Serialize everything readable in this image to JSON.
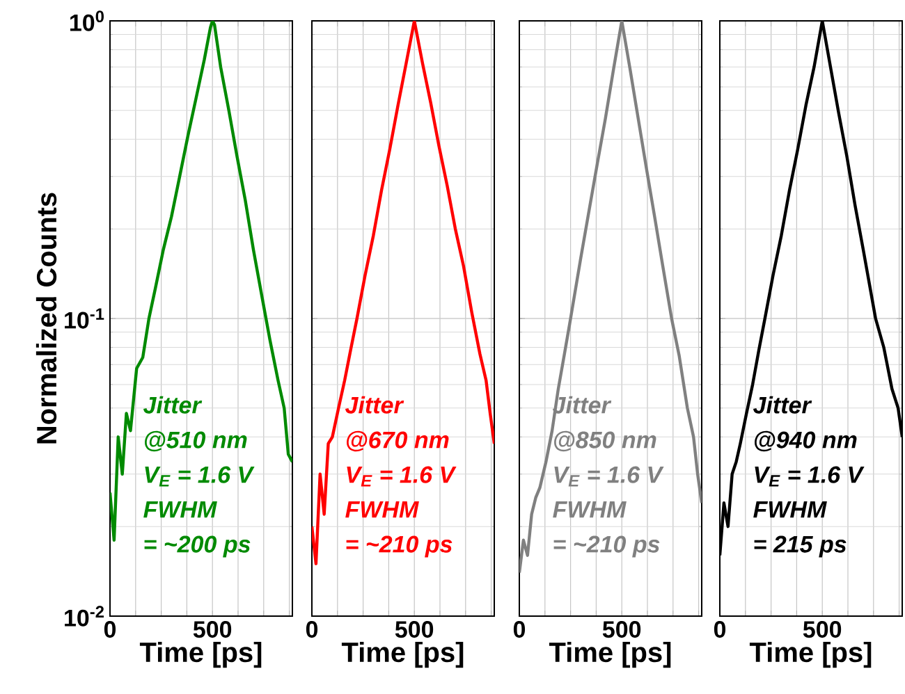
{
  "chart_data": [
    {
      "type": "line",
      "xlabel": "Time [ps]",
      "ylabel": "Normalized Counts",
      "log": "y",
      "grid": true,
      "xlim": [
        0,
        890
      ],
      "ylim": [
        0.01,
        1
      ],
      "xticks": [
        0,
        {
          "value": 125,
          "label": null
        },
        {
          "value": 250,
          "label": null
        },
        {
          "value": 375,
          "label": null
        },
        500,
        {
          "value": 625,
          "label": null
        },
        {
          "value": 750,
          "label": null
        },
        {
          "value": 875,
          "label": null
        }
      ],
      "yticks": [
        {
          "value": 0.01,
          "label": "10$^{-2}$"
        },
        {
          "value": 0.1,
          "label": "10$^{-1}$"
        },
        {
          "value": 1,
          "label": "10$^{0}$"
        }
      ],
      "series": [
        {
          "color": "#008a00",
          "x": [
            0,
            20,
            40,
            60,
            80,
            100,
            130,
            160,
            190,
            220,
            260,
            300,
            340,
            380,
            420,
            460,
            490,
            500,
            510,
            540,
            580,
            620,
            660,
            700,
            740,
            780,
            820,
            850,
            870,
            890
          ],
          "values": [
            0.026,
            0.018,
            0.04,
            0.03,
            0.048,
            0.042,
            0.068,
            0.074,
            0.1,
            0.125,
            0.17,
            0.22,
            0.3,
            0.41,
            0.55,
            0.74,
            0.95,
            1,
            0.97,
            0.7,
            0.5,
            0.35,
            0.25,
            0.17,
            0.12,
            0.085,
            0.062,
            0.05,
            0.035,
            0.033
          ]
        }
      ],
      "annotations": [
        "Jitter",
        "@510 nm",
        "V$_{E}$ = 1.6 V",
        "FWHM",
        "= ~200 ps"
      ]
    },
    {
      "type": "line",
      "xlabel": "Time [ps]",
      "log": "y",
      "grid": true,
      "tick_labels": "x",
      "xlim": [
        0,
        890
      ],
      "ylim": [
        0.01,
        1
      ],
      "xticks": [
        0,
        {
          "value": 125,
          "label": null
        },
        {
          "value": 250,
          "label": null
        },
        {
          "value": 375,
          "label": null
        },
        500,
        {
          "value": 625,
          "label": null
        },
        {
          "value": 750,
          "label": null
        },
        {
          "value": 875,
          "label": null
        }
      ],
      "yticks": [
        {
          "value": 0.01,
          "label": null
        },
        {
          "value": 0.1,
          "label": null
        },
        {
          "value": 1,
          "label": null
        }
      ],
      "series": [
        {
          "color": "#ff0000",
          "x": [
            0,
            20,
            40,
            60,
            80,
            100,
            130,
            160,
            190,
            220,
            260,
            300,
            340,
            380,
            420,
            460,
            500,
            540,
            580,
            620,
            660,
            700,
            740,
            780,
            820,
            850,
            870,
            890
          ],
          "values": [
            0.02,
            0.015,
            0.03,
            0.022,
            0.038,
            0.04,
            0.05,
            0.062,
            0.079,
            0.1,
            0.14,
            0.19,
            0.27,
            0.37,
            0.52,
            0.72,
            1,
            0.72,
            0.53,
            0.38,
            0.28,
            0.2,
            0.15,
            0.105,
            0.076,
            0.062,
            0.048,
            0.038
          ]
        }
      ],
      "annotations": [
        "Jitter",
        "@670 nm",
        "V$_{E}$ = 1.6 V",
        "FWHM",
        "= ~210 ps"
      ]
    },
    {
      "type": "line",
      "xlabel": "Time [ps]",
      "log": "y",
      "grid": true,
      "tick_labels": "x",
      "xlim": [
        0,
        890
      ],
      "ylim": [
        0.01,
        1
      ],
      "xticks": [
        0,
        {
          "value": 125,
          "label": null
        },
        {
          "value": 250,
          "label": null
        },
        {
          "value": 375,
          "label": null
        },
        500,
        {
          "value": 625,
          "label": null
        },
        {
          "value": 750,
          "label": null
        },
        {
          "value": 875,
          "label": null
        }
      ],
      "yticks": [
        {
          "value": 0.01,
          "label": null
        },
        {
          "value": 0.1,
          "label": null
        },
        {
          "value": 1,
          "label": null
        }
      ],
      "series": [
        {
          "color": "#808080",
          "x": [
            0,
            20,
            40,
            60,
            80,
            100,
            130,
            160,
            190,
            220,
            250,
            300,
            340,
            380,
            420,
            460,
            500,
            540,
            580,
            620,
            660,
            700,
            743,
            780,
            820,
            850,
            870,
            890
          ],
          "values": [
            0.014,
            0.018,
            0.016,
            0.022,
            0.025,
            0.027,
            0.033,
            0.042,
            0.058,
            0.076,
            0.1,
            0.16,
            0.23,
            0.33,
            0.47,
            0.69,
            1,
            0.69,
            0.47,
            0.32,
            0.22,
            0.15,
            0.1,
            0.075,
            0.05,
            0.04,
            0.03,
            0.024
          ]
        }
      ],
      "annotations": [
        "Jitter",
        "@850 nm",
        "V$_{E}$ = 1.6 V",
        "FWHM",
        "= ~210 ps"
      ]
    },
    {
      "type": "line",
      "xlabel": "Time [ps]",
      "log": "y",
      "grid": true,
      "tick_labels": "x",
      "xlim": [
        0,
        890
      ],
      "ylim": [
        0.01,
        1
      ],
      "xticks": [
        0,
        {
          "value": 125,
          "label": null
        },
        {
          "value": 250,
          "label": null
        },
        {
          "value": 375,
          "label": null
        },
        500,
        {
          "value": 625,
          "label": null
        },
        {
          "value": 750,
          "label": null
        },
        {
          "value": 875,
          "label": null
        }
      ],
      "yticks": [
        {
          "value": 0.01,
          "label": null
        },
        {
          "value": 0.1,
          "label": null
        },
        {
          "value": 1,
          "label": null
        }
      ],
      "series": [
        {
          "color": "#000000",
          "x": [
            0,
            20,
            40,
            60,
            80,
            100,
            130,
            160,
            190,
            220,
            260,
            300,
            340,
            380,
            420,
            460,
            500,
            540,
            580,
            620,
            660,
            700,
            760,
            800,
            840,
            870,
            890
          ],
          "values": [
            0.016,
            0.024,
            0.02,
            0.03,
            0.033,
            0.038,
            0.048,
            0.06,
            0.078,
            0.1,
            0.14,
            0.19,
            0.27,
            0.37,
            0.52,
            0.7,
            1,
            0.7,
            0.49,
            0.35,
            0.24,
            0.17,
            0.1,
            0.08,
            0.058,
            0.05,
            0.04
          ]
        }
      ],
      "annotations": [
        "Jitter",
        "@940 nm",
        "V$_{E}$ = 1.6 V",
        "FWHM",
        "= 215 ps"
      ]
    }
  ]
}
